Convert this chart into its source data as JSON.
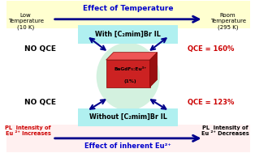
{
  "title": "Effect of Temperature",
  "bottom_title": "Effect of inherent Eu²⁺",
  "left_top_label": "Low\nTemperature\n(10 K)",
  "right_top_label": "Room\nTemperature\n(295 K)",
  "with_il": "With [C₂mim]Br IL",
  "without_il": "Without [C₂mim]Br IL",
  "no_qce_top": "NO QCE",
  "no_qce_bottom": "NO QCE",
  "qce_top": "QCE = 160%",
  "qce_bottom": "QCE = 123%",
  "center_label1": "BaGdF₅:Eu³⁺",
  "center_label2": "(1%)",
  "pl_left": "PL  Intensity of\nEu ²⁺ Increases",
  "pl_right": "PL  Intensity of\nEu ²⁺ Decreases",
  "bg_color": "#ffffff",
  "arrow_color": "#00008B",
  "box_il_color": "#b0f0f0",
  "center_ellipse_color": "#c8eed8",
  "text_black": "#000000",
  "text_red": "#cc0000",
  "text_blue": "#0000CC",
  "top_bg": "#ffffd0"
}
